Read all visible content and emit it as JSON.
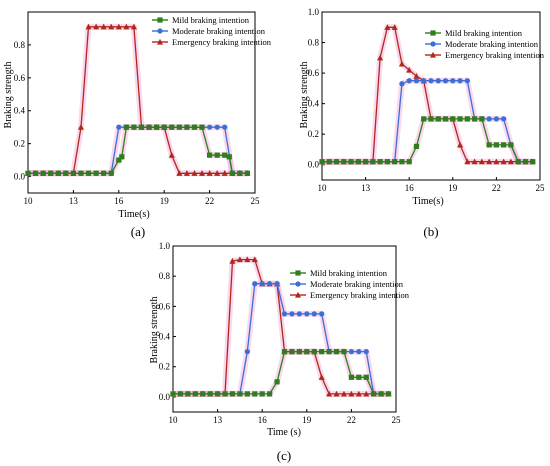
{
  "colors": {
    "mild": "#2e7d1e",
    "moderate": "#3a6fd8",
    "emergency": "#b0281a",
    "highlight": "#f4a9d8"
  },
  "chart_data": [
    {
      "type": "line",
      "panel_label": "(a)",
      "xlabel": "Time(s)",
      "ylabel": "Braking strength",
      "xlim": [
        10,
        25
      ],
      "ylim": [
        -0.1,
        1.0
      ],
      "xticks": [
        "10",
        "13",
        "16",
        "19",
        "22",
        "25"
      ],
      "yticks": [
        "0.0",
        "0.2",
        "0.4",
        "0.6",
        "0.8"
      ],
      "legend_position": "top-right",
      "series": [
        {
          "name": "Mild braking intention",
          "color": "#2e7d1e",
          "marker": "square",
          "x": [
            10,
            10.5,
            11,
            11.5,
            12,
            12.5,
            13,
            13.5,
            14,
            14.5,
            15,
            15.5,
            16,
            16.2,
            16.5,
            17,
            17.5,
            18,
            18.5,
            19,
            19.5,
            20,
            20.5,
            21,
            21.5,
            22,
            22.5,
            23,
            23.3,
            23.5,
            24,
            24.5
          ],
          "y": [
            0.02,
            0.02,
            0.02,
            0.02,
            0.02,
            0.02,
            0.02,
            0.02,
            0.02,
            0.02,
            0.02,
            0.02,
            0.1,
            0.12,
            0.3,
            0.3,
            0.3,
            0.3,
            0.3,
            0.3,
            0.3,
            0.3,
            0.3,
            0.3,
            0.3,
            0.13,
            0.13,
            0.13,
            0.12,
            0.02,
            0.02,
            0.02
          ]
        },
        {
          "name": "Moderate braking intention",
          "color": "#3a6fd8",
          "marker": "circle",
          "x": [
            10,
            10.5,
            11,
            11.5,
            12,
            12.5,
            13,
            13.5,
            14,
            14.5,
            15,
            15.5,
            16,
            16.5,
            17,
            17.5,
            18,
            18.5,
            19,
            19.5,
            20,
            20.5,
            21,
            21.5,
            22,
            22.5,
            23,
            23.5,
            24,
            24.5
          ],
          "y": [
            0.02,
            0.02,
            0.02,
            0.02,
            0.02,
            0.02,
            0.02,
            0.02,
            0.02,
            0.02,
            0.02,
            0.02,
            0.3,
            0.3,
            0.3,
            0.3,
            0.3,
            0.3,
            0.3,
            0.3,
            0.3,
            0.3,
            0.3,
            0.3,
            0.3,
            0.3,
            0.3,
            0.02,
            0.02,
            0.02
          ]
        },
        {
          "name": "Emergency braking intention",
          "color": "#b0281a",
          "marker": "triangle",
          "x": [
            10,
            10.5,
            11,
            11.5,
            12,
            12.5,
            13,
            13.5,
            14,
            14.5,
            15,
            15.5,
            16,
            16.5,
            17,
            17.5,
            18,
            18.5,
            19,
            19.5,
            20,
            20.5,
            21,
            21.5,
            22,
            22.5,
            23,
            23.5,
            24,
            24.5
          ],
          "y": [
            0.02,
            0.02,
            0.02,
            0.02,
            0.02,
            0.02,
            0.02,
            0.3,
            0.91,
            0.91,
            0.91,
            0.91,
            0.91,
            0.91,
            0.91,
            0.3,
            0.3,
            0.3,
            0.3,
            0.13,
            0.02,
            0.02,
            0.02,
            0.02,
            0.02,
            0.02,
            0.02,
            0.02,
            0.02,
            0.02
          ]
        }
      ]
    },
    {
      "type": "line",
      "panel_label": "(b)",
      "xlabel": "Time(s)",
      "ylabel": "Braking strength",
      "xlim": [
        10,
        25
      ],
      "ylim": [
        -0.1,
        1.0
      ],
      "xticks": [
        "10",
        "13",
        "16",
        "19",
        "22",
        "25"
      ],
      "yticks": [
        "0.0",
        "0.2",
        "0.4",
        "0.6",
        "0.8",
        "1.0"
      ],
      "legend_position": "top-right",
      "series": [
        {
          "name": "Mild braking intention",
          "color": "#2e7d1e",
          "marker": "square",
          "x": [
            10,
            10.5,
            11,
            11.5,
            12,
            12.5,
            13,
            13.5,
            14,
            14.5,
            15,
            15.5,
            16,
            16.5,
            17,
            17.5,
            18,
            18.5,
            19,
            19.5,
            20,
            20.5,
            21,
            21.5,
            22,
            22.5,
            23,
            23.5,
            24,
            24.5
          ],
          "y": [
            0.02,
            0.02,
            0.02,
            0.02,
            0.02,
            0.02,
            0.02,
            0.02,
            0.02,
            0.02,
            0.02,
            0.02,
            0.02,
            0.12,
            0.3,
            0.3,
            0.3,
            0.3,
            0.3,
            0.3,
            0.3,
            0.3,
            0.3,
            0.13,
            0.13,
            0.13,
            0.13,
            0.02,
            0.02,
            0.02
          ]
        },
        {
          "name": "Moderate braking intention",
          "color": "#3a6fd8",
          "marker": "circle",
          "x": [
            10,
            10.5,
            11,
            11.5,
            12,
            12.5,
            13,
            13.5,
            14,
            14.5,
            15,
            15.5,
            16,
            16.5,
            17,
            17.5,
            18,
            18.5,
            19,
            19.5,
            20,
            20.5,
            21,
            21.5,
            22,
            22.5,
            23,
            23.5,
            24,
            24.5
          ],
          "y": [
            0.02,
            0.02,
            0.02,
            0.02,
            0.02,
            0.02,
            0.02,
            0.02,
            0.02,
            0.02,
            0.02,
            0.53,
            0.55,
            0.55,
            0.55,
            0.55,
            0.55,
            0.55,
            0.55,
            0.55,
            0.55,
            0.3,
            0.3,
            0.3,
            0.3,
            0.3,
            0.13,
            0.02,
            0.02,
            0.02
          ]
        },
        {
          "name": "Emergency braking intention",
          "color": "#b0281a",
          "marker": "triangle",
          "x": [
            10,
            10.5,
            11,
            11.5,
            12,
            12.5,
            13,
            13.5,
            14,
            14.5,
            15,
            15.5,
            16,
            16.5,
            17,
            17.5,
            18,
            18.5,
            19,
            19.5,
            20,
            20.5,
            21,
            21.5,
            22,
            22.5,
            23,
            23.5,
            24,
            24.5
          ],
          "y": [
            0.02,
            0.02,
            0.02,
            0.02,
            0.02,
            0.02,
            0.02,
            0.02,
            0.7,
            0.9,
            0.9,
            0.66,
            0.62,
            0.58,
            0.55,
            0.3,
            0.3,
            0.3,
            0.3,
            0.13,
            0.02,
            0.02,
            0.02,
            0.02,
            0.02,
            0.02,
            0.02,
            0.02,
            0.02,
            0.02
          ]
        }
      ]
    },
    {
      "type": "line",
      "panel_label": "(c)",
      "xlabel": "Time (s)",
      "ylabel": "Braking strength",
      "xlim": [
        10,
        25
      ],
      "ylim": [
        -0.1,
        1.0
      ],
      "xticks": [
        "10",
        "13",
        "16",
        "19",
        "22",
        "25"
      ],
      "yticks": [
        "0.0",
        "0.2",
        "0.4",
        "0.6",
        "0.8",
        "1.0"
      ],
      "legend_position": "top-right",
      "series": [
        {
          "name": "Mild braking intention",
          "color": "#2e7d1e",
          "marker": "square",
          "x": [
            10,
            10.5,
            11,
            11.5,
            12,
            12.5,
            13,
            13.5,
            14,
            14.5,
            15,
            15.5,
            16,
            16.5,
            17,
            17.5,
            18,
            18.5,
            19,
            19.5,
            20,
            20.5,
            21,
            21.5,
            22,
            22.5,
            23,
            23.5,
            24,
            24.5
          ],
          "y": [
            0.02,
            0.02,
            0.02,
            0.02,
            0.02,
            0.02,
            0.02,
            0.02,
            0.02,
            0.02,
            0.02,
            0.02,
            0.02,
            0.02,
            0.1,
            0.3,
            0.3,
            0.3,
            0.3,
            0.3,
            0.3,
            0.3,
            0.3,
            0.3,
            0.13,
            0.13,
            0.13,
            0.02,
            0.02,
            0.02
          ]
        },
        {
          "name": "Moderate braking intention",
          "color": "#3a6fd8",
          "marker": "circle",
          "x": [
            10,
            10.5,
            11,
            11.5,
            12,
            12.5,
            13,
            13.5,
            14,
            14.5,
            15,
            15.5,
            16,
            16.5,
            17,
            17.5,
            18,
            18.5,
            19,
            19.5,
            20,
            20.5,
            21,
            21.5,
            22,
            22.5,
            23,
            23.5,
            24,
            24.5
          ],
          "y": [
            0.02,
            0.02,
            0.02,
            0.02,
            0.02,
            0.02,
            0.02,
            0.02,
            0.02,
            0.02,
            0.3,
            0.75,
            0.75,
            0.75,
            0.75,
            0.55,
            0.55,
            0.55,
            0.55,
            0.55,
            0.55,
            0.3,
            0.3,
            0.3,
            0.3,
            0.3,
            0.3,
            0.02,
            0.02,
            0.02
          ]
        },
        {
          "name": "Emergency braking intention",
          "color": "#b0281a",
          "marker": "triangle",
          "x": [
            10,
            10.5,
            11,
            11.5,
            12,
            12.5,
            13,
            13.5,
            14,
            14.5,
            15,
            15.5,
            16,
            16.5,
            17,
            17.5,
            18,
            18.5,
            19,
            19.5,
            20,
            20.5,
            21,
            21.5,
            22,
            22.5,
            23,
            23.5,
            24,
            24.5
          ],
          "y": [
            0.02,
            0.02,
            0.02,
            0.02,
            0.02,
            0.02,
            0.02,
            0.02,
            0.9,
            0.91,
            0.91,
            0.91,
            0.75,
            0.75,
            0.75,
            0.3,
            0.3,
            0.3,
            0.3,
            0.3,
            0.13,
            0.02,
            0.02,
            0.02,
            0.02,
            0.02,
            0.02,
            0.02,
            0.02,
            0.02
          ]
        }
      ]
    }
  ]
}
